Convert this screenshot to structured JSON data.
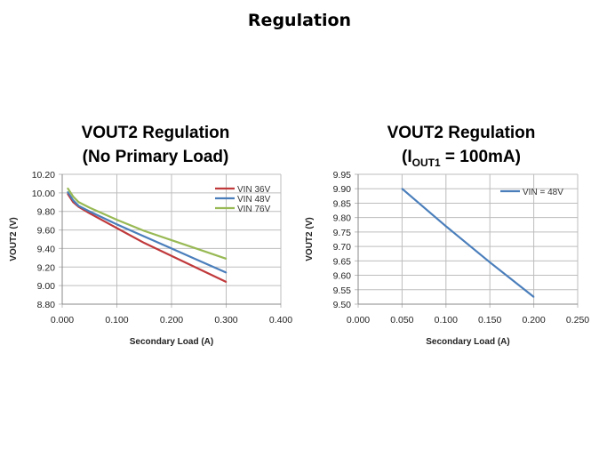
{
  "page": {
    "title": "Regulation"
  },
  "chart_data": [
    {
      "type": "line",
      "title": "VOUT2 Regulation",
      "subtitle": "(No Primary Load)",
      "xlabel": "Secondary Load (A)",
      "ylabel": "VOUT2 (V)",
      "xlim": [
        0,
        0.4
      ],
      "ylim": [
        8.8,
        10.2
      ],
      "xticks": [
        "0.000",
        "0.100",
        "0.200",
        "0.300",
        "0.400"
      ],
      "yticks": [
        "8.80",
        "9.00",
        "9.20",
        "9.40",
        "9.60",
        "9.80",
        "10.00",
        "10.20"
      ],
      "grid": true,
      "legend": "top-right",
      "series": [
        {
          "name": "VIN 36V",
          "color": "#c0393b",
          "x": [
            0.01,
            0.02,
            0.03,
            0.05,
            0.1,
            0.15,
            0.2,
            0.25,
            0.3
          ],
          "y": [
            9.99,
            9.9,
            9.85,
            9.78,
            9.62,
            9.46,
            9.32,
            9.18,
            9.04
          ]
        },
        {
          "name": "VIN 48V",
          "color": "#4a7ebb",
          "x": [
            0.01,
            0.02,
            0.03,
            0.05,
            0.1,
            0.15,
            0.2,
            0.25,
            0.3
          ],
          "y": [
            10.01,
            9.92,
            9.86,
            9.8,
            9.66,
            9.53,
            9.4,
            9.27,
            9.14
          ]
        },
        {
          "name": "VIN 76V",
          "color": "#98b954",
          "x": [
            0.01,
            0.02,
            0.03,
            0.05,
            0.1,
            0.15,
            0.2,
            0.25,
            0.3
          ],
          "y": [
            10.05,
            9.96,
            9.9,
            9.84,
            9.71,
            9.59,
            9.49,
            9.39,
            9.29
          ]
        }
      ]
    },
    {
      "type": "line",
      "title": "VOUT2 Regulation",
      "subtitle_prefix": "(I",
      "subtitle_sub": "OUT1",
      "subtitle_suffix": " = 100mA)",
      "xlabel": "Secondary Load (A)",
      "ylabel": "VOUT2 (V)",
      "xlim": [
        0,
        0.25
      ],
      "ylim": [
        9.5,
        9.95
      ],
      "xticks": [
        "0.000",
        "0.050",
        "0.100",
        "0.150",
        "0.200",
        "0.250"
      ],
      "yticks": [
        "9.50",
        "9.55",
        "9.60",
        "9.65",
        "9.70",
        "9.75",
        "9.80",
        "9.85",
        "9.90",
        "9.95"
      ],
      "grid": true,
      "legend": "top-right",
      "series": [
        {
          "name": "VIN = 48V",
          "color": "#4a7ebb",
          "x": [
            0.05,
            0.1,
            0.15,
            0.2
          ],
          "y": [
            9.9,
            9.77,
            9.645,
            9.525
          ]
        }
      ]
    }
  ]
}
